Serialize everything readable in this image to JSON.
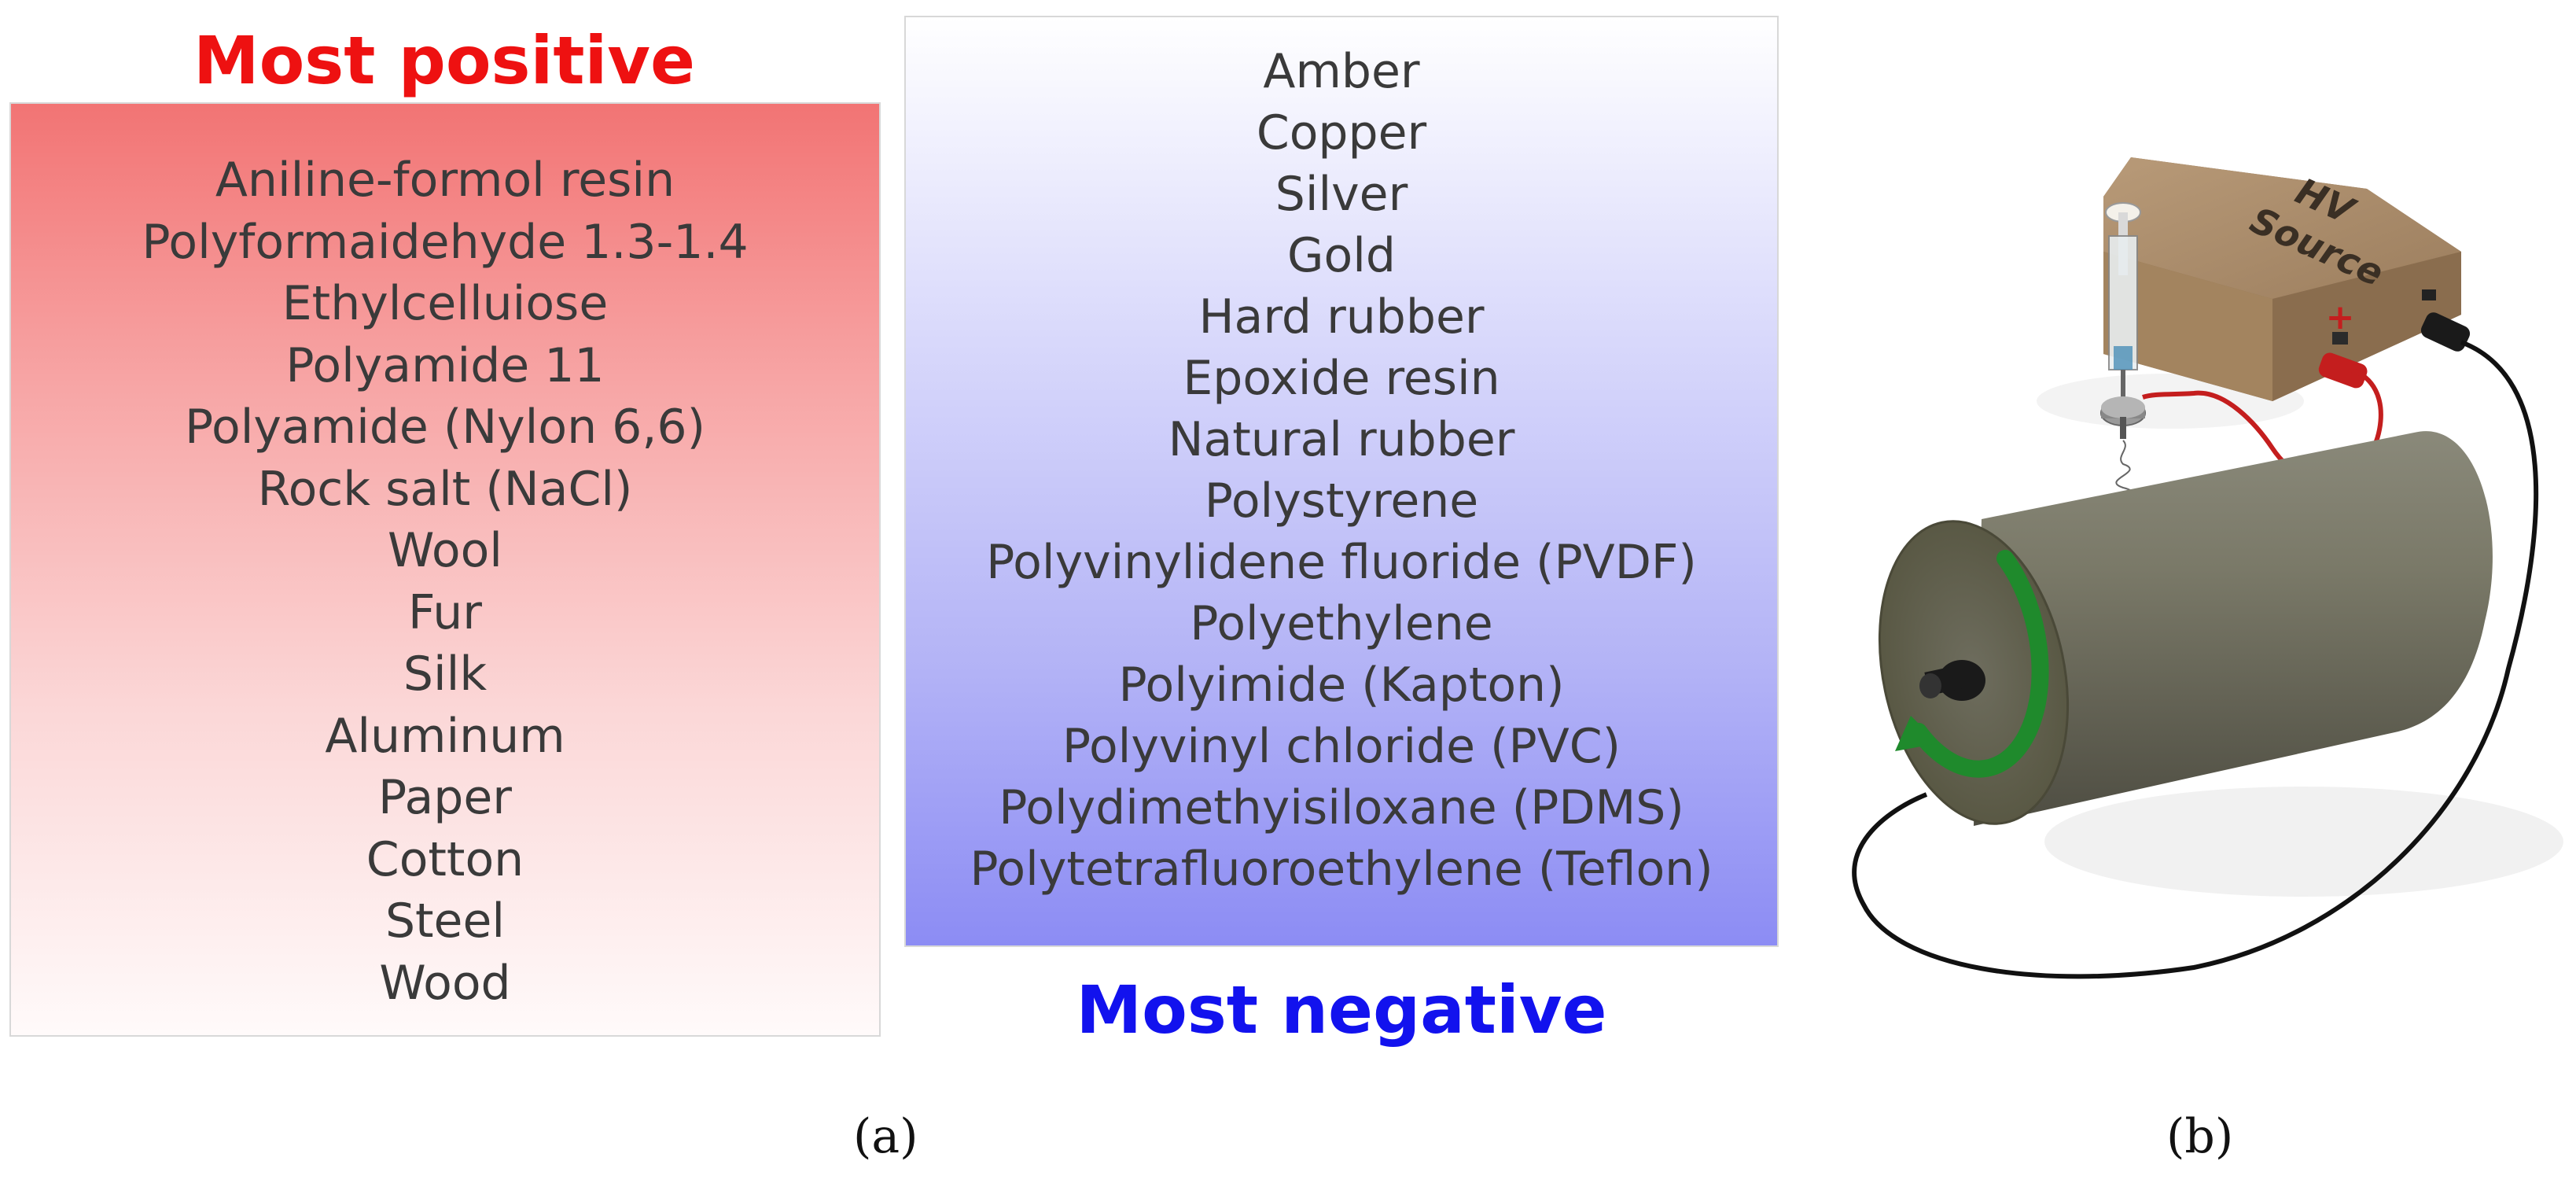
{
  "panel_a": {
    "positive_heading": "Most positive",
    "positive_items": [
      "Aniline-formol resin",
      "Polyformaidehyde 1.3-1.4",
      "Ethylcelluiose",
      "Polyamide 11",
      "Polyamide (Nylon 6,6)",
      "Rock salt (NaCl)",
      "Wool",
      "Fur",
      "Silk",
      "Aluminum",
      "Paper",
      "Cotton",
      "Steel",
      "Wood"
    ],
    "negative_items": [
      "Amber",
      "Copper",
      "Silver",
      "Gold",
      "Hard rubber",
      "Epoxide resin",
      "Natural rubber",
      "Polystyrene",
      "Polyvinylidene fluoride (PVDF)",
      "Polyethylene",
      "Polyimide (Kapton)",
      "Polyvinyl chloride (PVC)",
      "Polydimethyisiloxane (PDMS)",
      "Polytetrafluoroethylene (Teflon)"
    ],
    "negative_heading": "Most negative",
    "caption": "(a)"
  },
  "panel_b": {
    "source_label_line1": "HV",
    "source_label_line2": "Source",
    "plus_sign": "+",
    "caption": "(b)"
  },
  "colors": {
    "positive_accent": "#ee1111",
    "negative_accent": "#1212ee",
    "box_tan": "#a08060",
    "drum_gray": "#6b6a5c",
    "arrow_green": "#1f8a2c",
    "wire_red": "#c41e1e"
  }
}
